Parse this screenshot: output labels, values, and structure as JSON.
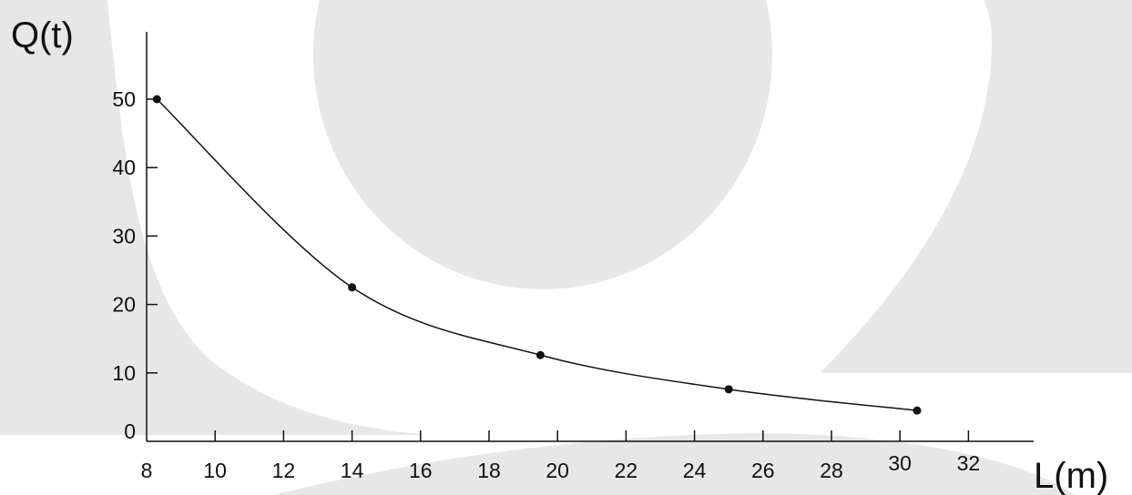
{
  "colors": {
    "watermark": "#e6e7e6",
    "background": "#ffffff",
    "ink": "#111111"
  },
  "chart_data": {
    "type": "line",
    "ylabel": "Q(t)",
    "xlabel": "L(m)",
    "x_ticks": [
      8,
      10,
      12,
      14,
      16,
      18,
      20,
      22,
      24,
      26,
      28,
      30,
      32
    ],
    "y_ticks": [
      0,
      10,
      20,
      30,
      40,
      50
    ],
    "xlim": [
      8,
      34
    ],
    "ylim": [
      0,
      60
    ],
    "grid": false,
    "series": [
      {
        "x": [
          8.3,
          14.0,
          19.5,
          25.0,
          30.5
        ],
        "y": [
          50,
          22.5,
          12.6,
          7.6,
          4.5
        ],
        "marker": "circle",
        "smooth": true
      }
    ]
  }
}
